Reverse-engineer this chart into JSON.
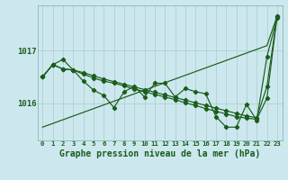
{
  "title": "Graphe pression niveau de la mer (hPa)",
  "bg_color": "#cce8ee",
  "grid_color": "#aacccc",
  "line_color": "#1a5c1a",
  "xlim": [
    -0.5,
    23.5
  ],
  "ylim": [
    1015.3,
    1017.85
  ],
  "yticks": [
    1016,
    1017
  ],
  "xticks": [
    0,
    1,
    2,
    3,
    4,
    5,
    6,
    7,
    8,
    9,
    10,
    11,
    12,
    13,
    14,
    15,
    16,
    17,
    18,
    19,
    20,
    21,
    22,
    23
  ],
  "ytick_fontsize": 6.5,
  "xtick_fontsize": 5.2,
  "xlabel_fontsize": 7.0,
  "line_main": [
    1016.5,
    1016.73,
    1016.83,
    1016.63,
    1016.42,
    1016.25,
    1016.15,
    1015.92,
    1016.22,
    1016.32,
    1016.12,
    1016.38,
    1016.38,
    1016.12,
    1016.28,
    1016.22,
    1016.18,
    1015.75,
    1015.55,
    1015.55,
    1015.98,
    1015.68,
    1016.88,
    1017.62
  ],
  "line_smooth": [
    1016.5,
    1016.73,
    1016.65,
    1016.63,
    1016.55,
    1016.48,
    1016.42,
    1016.38,
    1016.33,
    1016.27,
    1016.22,
    1016.17,
    1016.12,
    1016.07,
    1016.01,
    1015.96,
    1015.9,
    1015.85,
    1015.8,
    1015.75,
    1015.72,
    1015.7,
    1016.1,
    1017.65
  ],
  "line_fan1": [
    1016.5,
    1016.73,
    1016.65,
    1016.63,
    1016.58,
    1016.52,
    1016.46,
    1016.41,
    1016.36,
    1016.31,
    1016.26,
    1016.21,
    1016.16,
    1016.11,
    1016.06,
    1016.01,
    1015.96,
    1015.91,
    1015.86,
    1015.81,
    1015.76,
    1015.73,
    1016.32,
    1017.65
  ],
  "line_trend": [
    1015.55,
    1015.62,
    1015.69,
    1015.76,
    1015.83,
    1015.9,
    1015.97,
    1016.04,
    1016.11,
    1016.18,
    1016.25,
    1016.32,
    1016.39,
    1016.46,
    1016.53,
    1016.6,
    1016.67,
    1016.74,
    1016.81,
    1016.88,
    1016.95,
    1017.02,
    1017.09,
    1017.65
  ]
}
